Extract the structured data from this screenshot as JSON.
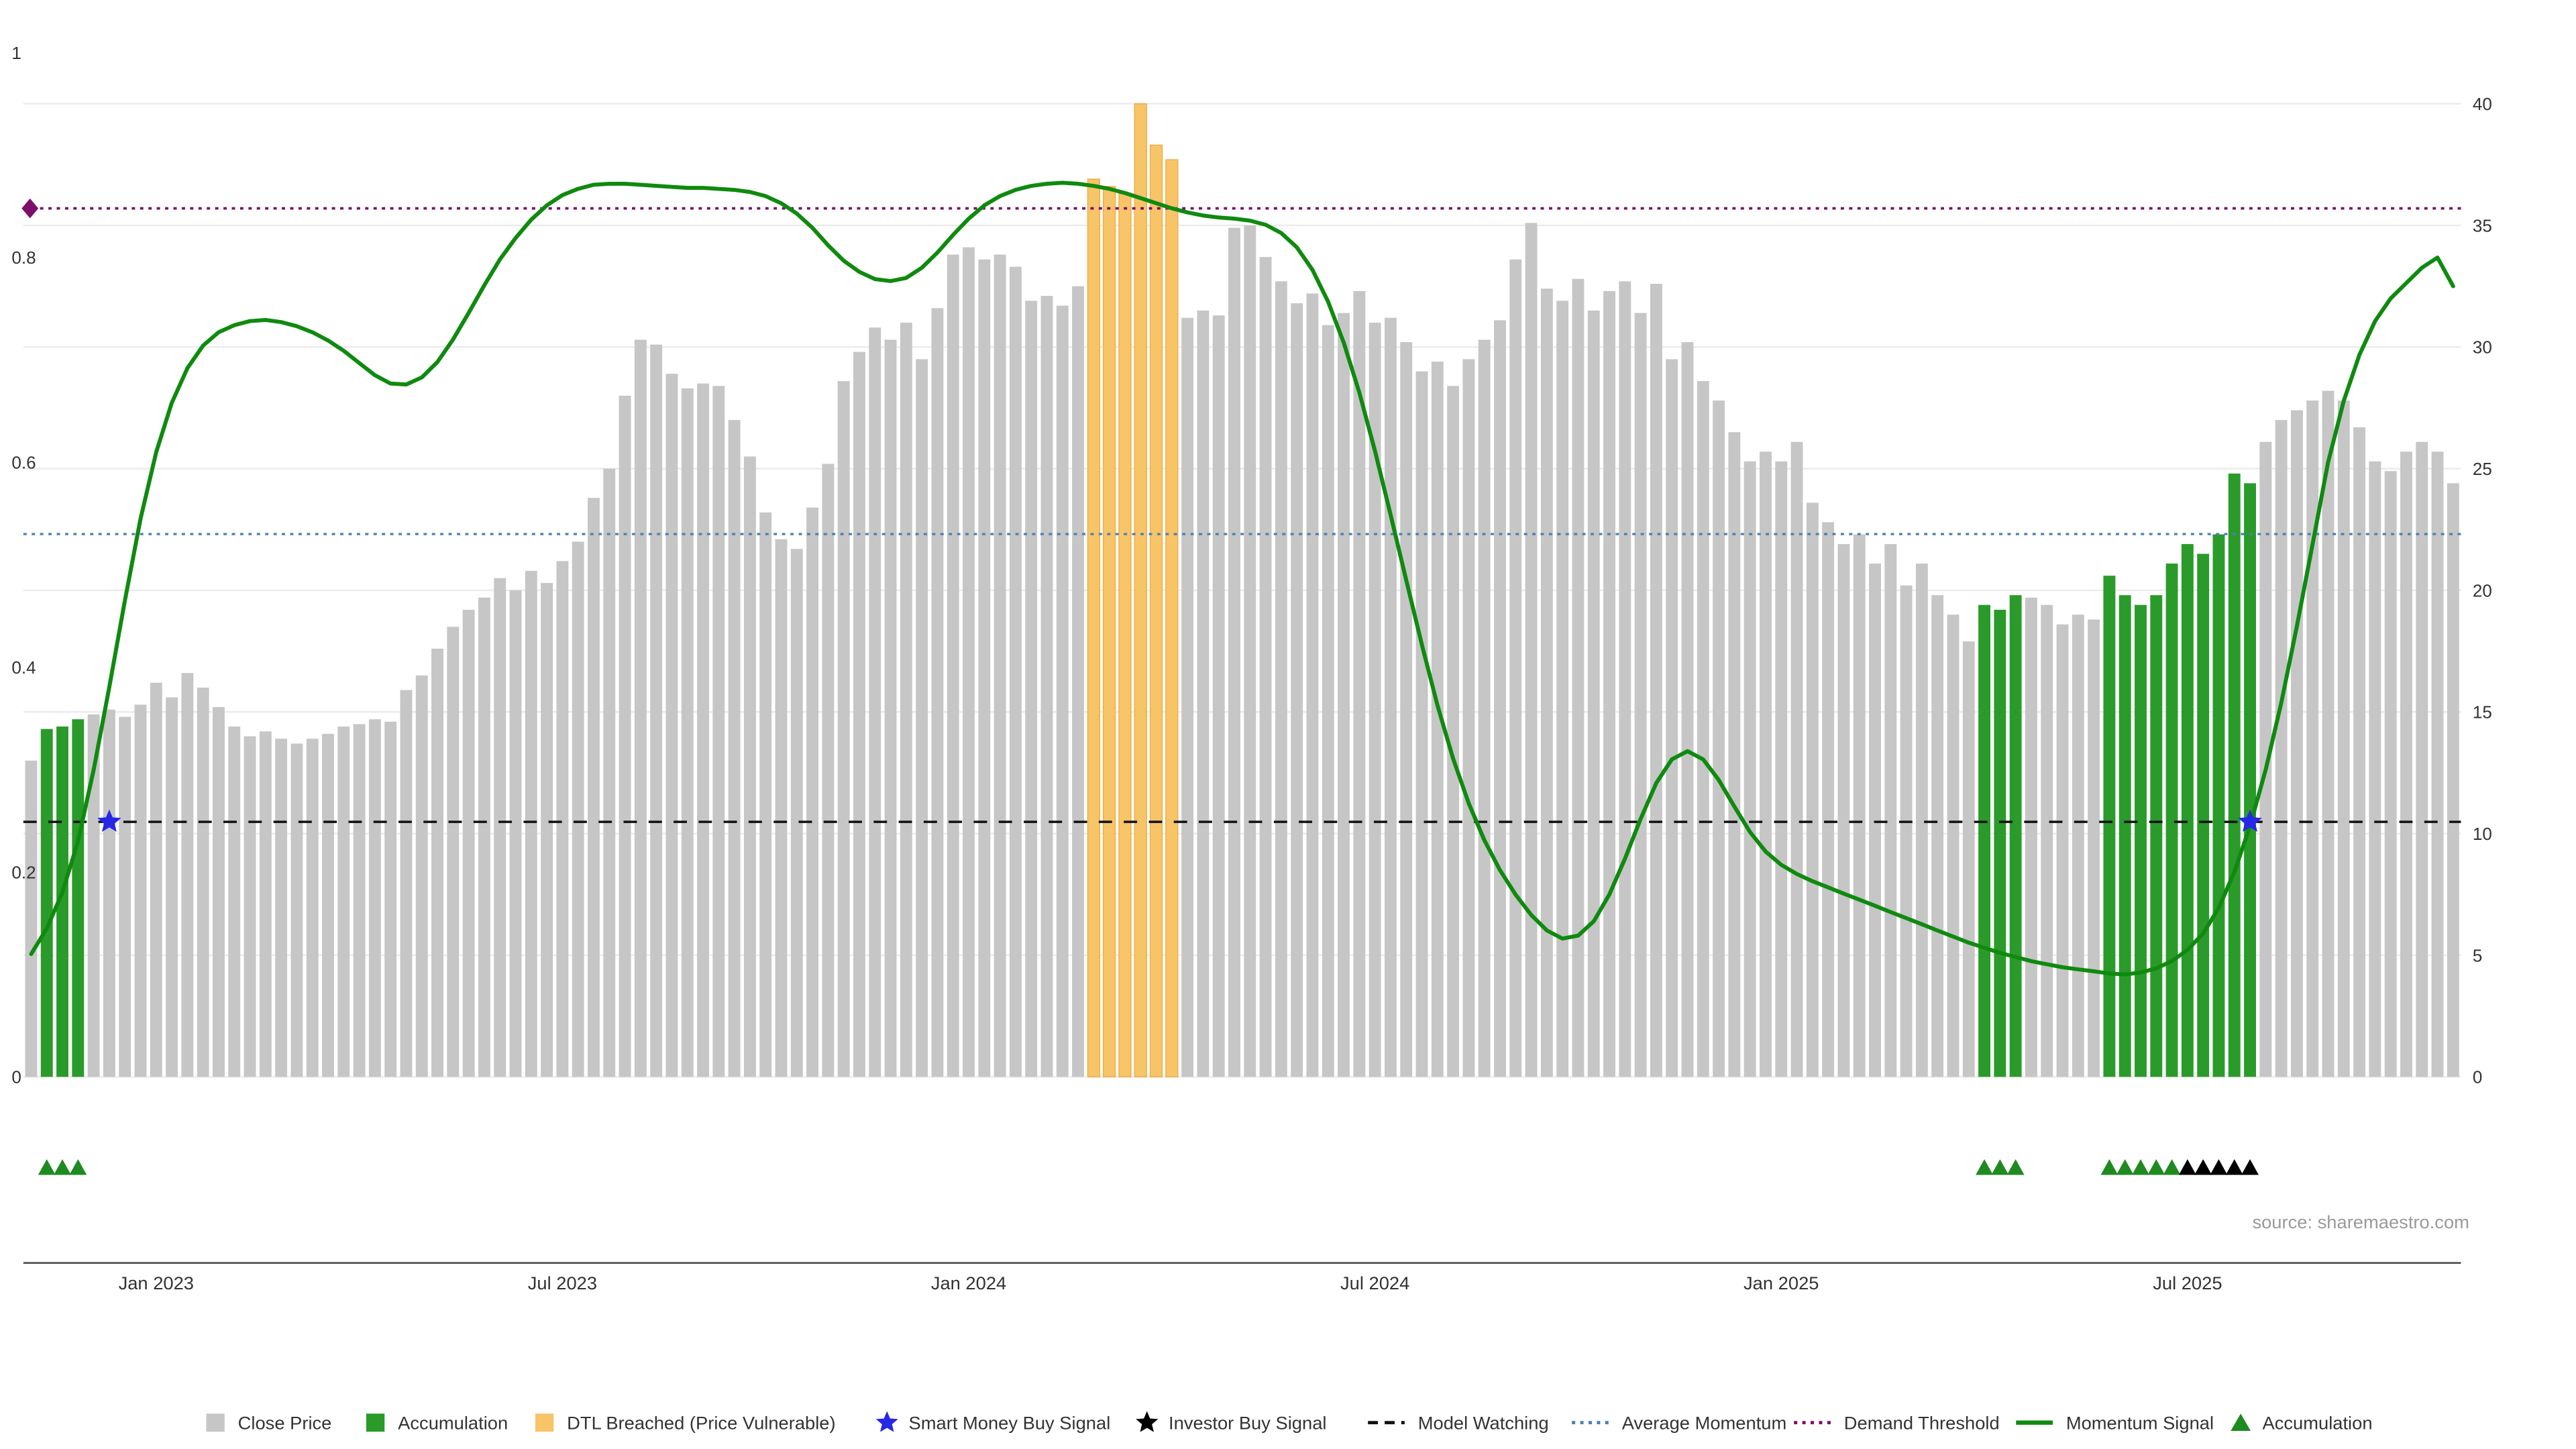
{
  "chart_data": {
    "type": "bar",
    "title": "",
    "source": "source: sharemaestro.com",
    "left_axis": {
      "label": "",
      "ticks": [
        0,
        0.2,
        0.4,
        0.6,
        0.8,
        1
      ],
      "range": [
        0,
        1.05
      ]
    },
    "right_axis": {
      "label": "",
      "ticks": [
        0,
        5,
        10,
        15,
        20,
        25,
        30,
        35,
        40
      ],
      "range": [
        0,
        42
      ]
    },
    "x_ticks": [
      {
        "index": 8,
        "label": "Jan 2023"
      },
      {
        "index": 34,
        "label": "Jul 2023"
      },
      {
        "index": 60,
        "label": "Jan 2024"
      },
      {
        "index": 86,
        "label": "Jul 2024"
      },
      {
        "index": 112,
        "label": "Jan 2025"
      },
      {
        "index": 138,
        "label": "Jul 2025"
      }
    ],
    "close_price": [
      13.0,
      14.3,
      14.4,
      14.7,
      14.9,
      15.1,
      14.8,
      15.3,
      16.2,
      15.6,
      16.6,
      16.0,
      15.2,
      14.4,
      14.0,
      14.2,
      13.9,
      13.7,
      13.9,
      14.1,
      14.4,
      14.5,
      14.7,
      14.6,
      15.9,
      16.5,
      17.6,
      18.5,
      19.2,
      19.7,
      20.5,
      20.0,
      20.8,
      20.3,
      21.2,
      22.0,
      23.8,
      25.0,
      28.0,
      30.3,
      30.1,
      28.9,
      28.3,
      28.5,
      28.4,
      27.0,
      25.5,
      23.2,
      22.1,
      21.7,
      23.4,
      25.2,
      28.6,
      29.8,
      30.8,
      30.3,
      31.0,
      29.5,
      31.6,
      33.8,
      34.1,
      33.6,
      33.8,
      33.3,
      31.9,
      32.1,
      31.7,
      32.5,
      36.9,
      36.6,
      36.3,
      40.0,
      38.3,
      37.7,
      31.2,
      31.5,
      31.3,
      34.9,
      35.0,
      33.7,
      32.7,
      31.8,
      32.2,
      30.9,
      31.4,
      32.3,
      31.0,
      31.2,
      30.2,
      29.0,
      29.4,
      28.4,
      29.5,
      30.3,
      31.1,
      33.6,
      35.1,
      32.4,
      31.9,
      32.8,
      31.5,
      32.3,
      32.7,
      31.4,
      32.6,
      29.5,
      30.2,
      28.6,
      27.8,
      26.5,
      25.3,
      25.7,
      25.3,
      26.1,
      23.6,
      22.8,
      21.9,
      22.3,
      21.1,
      21.9,
      20.2,
      21.1,
      19.8,
      19.0,
      17.9,
      19.4,
      19.2,
      19.8,
      19.7,
      19.4,
      18.6,
      19.0,
      18.8,
      20.6,
      19.8,
      19.4,
      19.8,
      21.1,
      21.9,
      21.5,
      22.3,
      24.8,
      24.4,
      26.1,
      27.0,
      27.4,
      27.8,
      28.2,
      27.8,
      26.7,
      25.3,
      24.9,
      25.7,
      26.1,
      25.7,
      24.4
    ],
    "momentum_signal": [
      0.12,
      0.145,
      0.18,
      0.23,
      0.3,
      0.38,
      0.465,
      0.545,
      0.61,
      0.658,
      0.692,
      0.714,
      0.727,
      0.734,
      0.738,
      0.739,
      0.737,
      0.733,
      0.727,
      0.719,
      0.709,
      0.697,
      0.685,
      0.677,
      0.676,
      0.683,
      0.698,
      0.72,
      0.746,
      0.773,
      0.798,
      0.819,
      0.837,
      0.851,
      0.861,
      0.867,
      0.871,
      0.872,
      0.872,
      0.871,
      0.87,
      0.869,
      0.868,
      0.868,
      0.867,
      0.866,
      0.864,
      0.86,
      0.853,
      0.843,
      0.829,
      0.812,
      0.797,
      0.786,
      0.779,
      0.777,
      0.78,
      0.79,
      0.805,
      0.822,
      0.838,
      0.851,
      0.86,
      0.866,
      0.87,
      0.872,
      0.873,
      0.872,
      0.87,
      0.867,
      0.863,
      0.858,
      0.853,
      0.848,
      0.844,
      0.841,
      0.839,
      0.838,
      0.836,
      0.832,
      0.824,
      0.81,
      0.788,
      0.757,
      0.717,
      0.668,
      0.611,
      0.549,
      0.485,
      0.422,
      0.363,
      0.311,
      0.267,
      0.231,
      0.202,
      0.178,
      0.158,
      0.143,
      0.135,
      0.138,
      0.152,
      0.178,
      0.213,
      0.252,
      0.287,
      0.31,
      0.318,
      0.31,
      0.29,
      0.264,
      0.239,
      0.22,
      0.207,
      0.198,
      0.191,
      0.185,
      0.179,
      0.173,
      0.167,
      0.161,
      0.155,
      0.149,
      0.143,
      0.137,
      0.131,
      0.126,
      0.121,
      0.117,
      0.113,
      0.11,
      0.107,
      0.105,
      0.103,
      0.101,
      0.1,
      0.102,
      0.106,
      0.113,
      0.124,
      0.14,
      0.165,
      0.2,
      0.245,
      0.3,
      0.365,
      0.44,
      0.52,
      0.6,
      0.66,
      0.705,
      0.738,
      0.76,
      0.775,
      0.79,
      0.8,
      0.772
    ],
    "accumulation_indices": [
      1,
      2,
      3,
      125,
      126,
      127,
      133,
      134,
      135,
      136,
      137,
      138,
      139,
      140,
      141,
      142
    ],
    "dtl_breached_indices": [
      68,
      69,
      70,
      71,
      72,
      73
    ],
    "hlines": {
      "demand_threshold": 0.848,
      "average_momentum": 0.53,
      "model_watching": 0.249
    },
    "smart_money_buy_signals": [
      {
        "index": 5
      },
      {
        "index": 142
      }
    ],
    "demand_threshold_marker": {
      "index": 0,
      "level": 0.848
    },
    "signal_triangles": {
      "green": [
        1,
        2,
        3,
        125,
        126,
        127,
        133,
        134,
        135,
        136,
        137
      ],
      "black": [
        138,
        139,
        140,
        141,
        142
      ]
    },
    "legend": [
      {
        "label": "Close Price",
        "swatch": "square",
        "color_key": "close_price"
      },
      {
        "label": "Accumulation",
        "swatch": "square",
        "color_key": "accumulation"
      },
      {
        "label": "DTL Breached (Price Vulnerable)",
        "swatch": "square",
        "color_key": "dtl_breached"
      },
      {
        "label": "Smart Money Buy Signal",
        "swatch": "star",
        "color_key": "smart_money_star"
      },
      {
        "label": "Investor Buy Signal",
        "swatch": "star",
        "color_key": "investor_star"
      },
      {
        "label": "Model Watching",
        "swatch": "dashed-line",
        "color_key": "model_watching"
      },
      {
        "label": "Average Momentum",
        "swatch": "dotted-line",
        "color_key": "average_momentum"
      },
      {
        "label": "Demand Threshold",
        "swatch": "dotted-line",
        "color_key": "demand_threshold"
      },
      {
        "label": "Momentum Signal",
        "swatch": "line",
        "color_key": "momentum_signal"
      },
      {
        "label": "Accumulation",
        "swatch": "triangle",
        "color_key": "triangle_green"
      }
    ],
    "colors": {
      "close_price": "#c6c6c6",
      "accumulation": "#2a9b2a",
      "dtl_breached": "#f8c468",
      "dtl_breached_edge": "#edb04a",
      "momentum_signal": "#0f8a0f",
      "model_watching": "#111111",
      "average_momentum": "#4a7fb5",
      "demand_threshold": "#7c0f6d",
      "smart_money_star": "#2727e8",
      "investor_star": "#000000",
      "triangle_green": "#1f8a1f",
      "triangle_black": "#000000",
      "grid": "#ebebeb",
      "axis_line": "#444444",
      "axis_text": "#333333",
      "source_text": "#9a9a9a"
    }
  }
}
